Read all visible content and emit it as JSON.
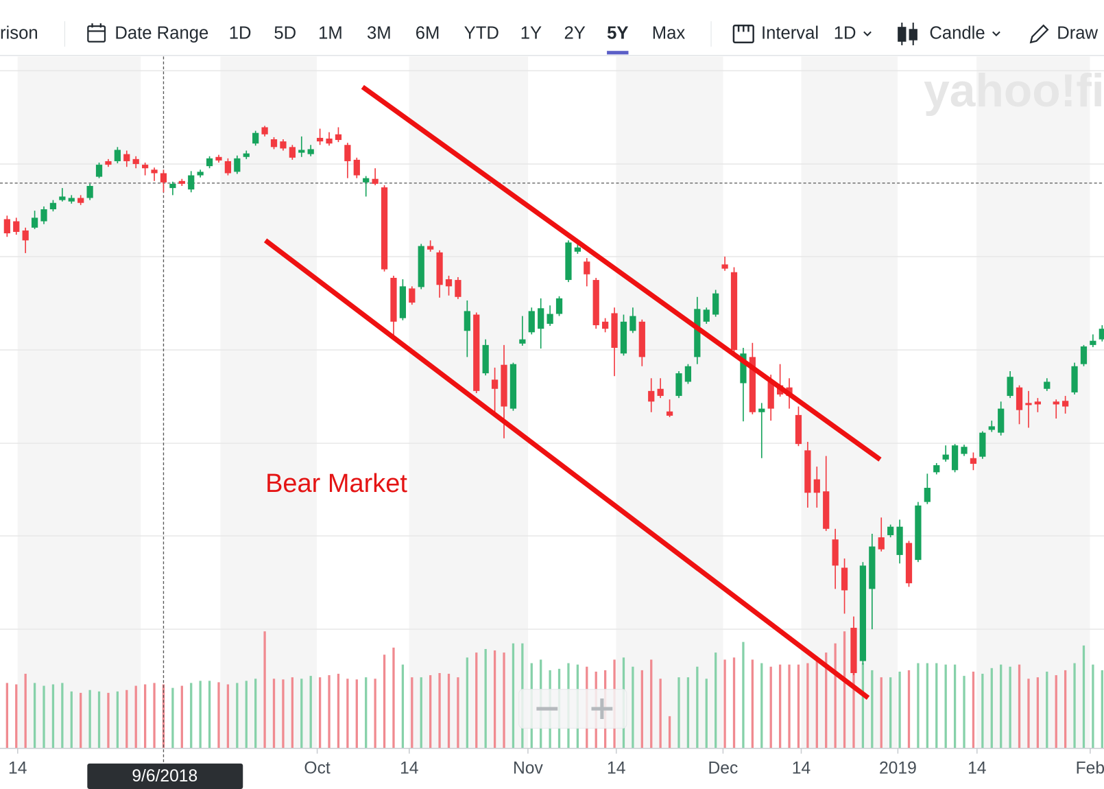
{
  "toolbar": {
    "comparison": "rison",
    "date_range": "Date Range",
    "ranges": [
      "1D",
      "5D",
      "1M",
      "3M",
      "6M",
      "YTD",
      "1Y",
      "2Y",
      "5Y",
      "Max"
    ],
    "selected": "5Y",
    "interval_label": "Interval",
    "interval": "1D",
    "chart_style": "Candle",
    "draw": "Draw"
  },
  "chart_data": {
    "type": "candlestick",
    "watermark": "yahoo!fi",
    "annotation": "Bear Market",
    "x": [
      0,
      1,
      2,
      3,
      4,
      5,
      6,
      7,
      8,
      9,
      10,
      11,
      12,
      13,
      14,
      15,
      16,
      17,
      18,
      19,
      20,
      21,
      22,
      23,
      24,
      25,
      26,
      27,
      28,
      29,
      30,
      31,
      32,
      33,
      34,
      35,
      36,
      37,
      38,
      39,
      40,
      41,
      42,
      43,
      44,
      45,
      46,
      47,
      48,
      49,
      50,
      51,
      52,
      53,
      54,
      55,
      56,
      57,
      58,
      59,
      60,
      61,
      62,
      63,
      64,
      65,
      66,
      67,
      68,
      69,
      70,
      71,
      72,
      73,
      74,
      75,
      76,
      77,
      78,
      79,
      80,
      81,
      82,
      83,
      84,
      85,
      86,
      87,
      88,
      89,
      90,
      91,
      92,
      93,
      94,
      95,
      96,
      97,
      98,
      99,
      100,
      101,
      102,
      103,
      104,
      105,
      106,
      107,
      108,
      109,
      110,
      111,
      112,
      113,
      114,
      115,
      116,
      117,
      118,
      119
    ],
    "open": [
      750,
      747,
      734,
      738,
      747,
      764,
      777,
      775,
      780,
      780,
      810,
      832,
      832,
      842,
      835,
      827,
      820,
      815,
      794,
      804,
      792,
      812,
      825,
      838,
      832,
      817,
      838,
      857,
      880,
      863,
      860,
      852,
      844,
      842,
      865,
      864,
      870,
      855,
      834,
      802,
      807,
      795,
      667,
      610,
      652,
      654,
      712,
      703,
      665,
      664,
      592,
      615,
      532,
      523,
      544,
      482,
      574,
      590,
      595,
      602,
      616,
      664,
      704,
      690,
      664,
      605,
      617,
      560,
      592,
      605,
      507,
      510,
      478,
      500,
      520,
      555,
      605,
      615,
      686,
      675,
      518,
      555,
      477,
      520,
      515,
      512,
      473,
      423,
      382,
      365,
      297,
      257,
      172,
      125,
      227,
      300,
      303,
      275,
      292,
      268,
      350,
      392,
      410,
      395,
      418,
      412,
      414,
      452,
      448,
      500,
      512,
      490,
      492,
      510,
      492,
      493,
      505,
      545,
      572,
      580
    ],
    "high": [
      755,
      752,
      738,
      762,
      768,
      777,
      794,
      784,
      784,
      800,
      830,
      835,
      852,
      847,
      839,
      830,
      823,
      820,
      803,
      807,
      818,
      820,
      839,
      841,
      836,
      840,
      847,
      875,
      882,
      866,
      863,
      855,
      867,
      855,
      878,
      873,
      880,
      858,
      837,
      811,
      822,
      798,
      670,
      665,
      655,
      715,
      720,
      706,
      670,
      668,
      635,
      618,
      580,
      540,
      572,
      547,
      613,
      625,
      638,
      628,
      641,
      720,
      718,
      695,
      667,
      610,
      625,
      615,
      625,
      608,
      525,
      525,
      495,
      535,
      545,
      640,
      625,
      650,
      697,
      682,
      568,
      575,
      490,
      530,
      545,
      525,
      485,
      435,
      400,
      415,
      312,
      270,
      188,
      265,
      305,
      328,
      318,
      325,
      295,
      350,
      390,
      405,
      430,
      432,
      431,
      420,
      450,
      465,
      492,
      535,
      515,
      507,
      497,
      525,
      495,
      500,
      547,
      572,
      587,
      600
    ],
    "low": [
      725,
      728,
      702,
      736,
      743,
      761,
      775,
      772,
      770,
      777,
      808,
      824,
      829,
      824,
      822,
      812,
      804,
      788,
      784,
      797,
      788,
      809,
      822,
      830,
      812,
      814,
      835,
      854,
      867,
      849,
      847,
      834,
      838,
      839,
      855,
      854,
      859,
      808,
      808,
      782,
      798,
      676,
      585,
      607,
      629,
      651,
      704,
      639,
      642,
      637,
      555,
      504,
      529,
      475,
      440,
      479,
      571,
      587,
      567,
      599,
      613,
      661,
      701,
      655,
      595,
      590,
      528,
      557,
      589,
      542,
      477,
      497,
      470,
      497,
      517,
      545,
      602,
      612,
      677,
      562,
      464,
      474,
      412,
      465,
      499,
      482,
      429,
      342,
      342,
      309,
      227,
      192,
      105,
      120,
      170,
      280,
      300,
      263,
      230,
      265,
      347,
      389,
      407,
      392,
      415,
      395,
      411,
      449,
      444,
      497,
      460,
      455,
      477,
      507,
      468,
      475,
      502,
      542,
      569,
      577
    ],
    "close": [
      730,
      732,
      720,
      752,
      764,
      773,
      782,
      780,
      773,
      797,
      827,
      827,
      848,
      832,
      828,
      822,
      815,
      802,
      800,
      800,
      812,
      817,
      836,
      833,
      815,
      836,
      843,
      872,
      870,
      852,
      850,
      837,
      848,
      849,
      860,
      857,
      862,
      832,
      812,
      808,
      800,
      679,
      605,
      655,
      632,
      712,
      707,
      657,
      655,
      640,
      620,
      507,
      572,
      510,
      485,
      545,
      580,
      620,
      624,
      616,
      638,
      717,
      710,
      672,
      600,
      595,
      568,
      605,
      613,
      555,
      492,
      500,
      472,
      532,
      542,
      623,
      622,
      645,
      680,
      565,
      560,
      477,
      482,
      482,
      502,
      500,
      432,
      363,
      363,
      312,
      260,
      225,
      108,
      260,
      287,
      283,
      315,
      315,
      235,
      345,
      370,
      402,
      417,
      430,
      428,
      404,
      448,
      457,
      482,
      527,
      480,
      487,
      488,
      520,
      488,
      485,
      542,
      570,
      578,
      595
    ],
    "volume": [
      92,
      90,
      105,
      92,
      88,
      90,
      92,
      80,
      78,
      82,
      80,
      78,
      80,
      82,
      88,
      90,
      92,
      90,
      85,
      88,
      92,
      95,
      95,
      93,
      90,
      92,
      95,
      98,
      165,
      98,
      97,
      100,
      98,
      102,
      100,
      103,
      105,
      98,
      97,
      100,
      98,
      132,
      142,
      118,
      100,
      100,
      103,
      106,
      105,
      100,
      128,
      135,
      140,
      138,
      135,
      148,
      148,
      120,
      125,
      110,
      112,
      120,
      118,
      115,
      108,
      110,
      125,
      128,
      115,
      110,
      125,
      98,
      45,
      100,
      100,
      115,
      98,
      135,
      125,
      128,
      150,
      125,
      120,
      115,
      118,
      118,
      118,
      120,
      128,
      135,
      148,
      165,
      145,
      120,
      110,
      100,
      100,
      108,
      110,
      120,
      120,
      120,
      118,
      118,
      102,
      108,
      105,
      113,
      118,
      115,
      118,
      98,
      100,
      108,
      103,
      110,
      120,
      145,
      118,
      110
    ],
    "up_color": "#16a35c",
    "down_color": "#f23a40",
    "up_volume_color": "#86d1a9",
    "down_volume_color": "#f08a90",
    "xlim": [
      -0.77,
      119.2
    ],
    "ylim": [
      0,
      980
    ],
    "volume_lim": [
      0,
      200
    ],
    "xticks": [
      {
        "value": 1.15,
        "label": "14"
      },
      {
        "value": 33.7,
        "label": "Oct"
      },
      {
        "value": 43.7,
        "label": "14"
      },
      {
        "value": 56.6,
        "label": "Nov"
      },
      {
        "value": 66.2,
        "label": "14"
      },
      {
        "value": 77.8,
        "label": "Dec"
      },
      {
        "value": 86.3,
        "label": "14"
      },
      {
        "value": 96.8,
        "label": "2019"
      },
      {
        "value": 105.4,
        "label": "14"
      },
      {
        "value": 117.7,
        "label": "Feb"
      }
    ],
    "grid_lines": [
      960,
      828,
      697,
      565,
      433,
      302,
      170
    ],
    "crosshair": {
      "x": 17,
      "y": 801,
      "date_label": "9/6/2018"
    }
  }
}
